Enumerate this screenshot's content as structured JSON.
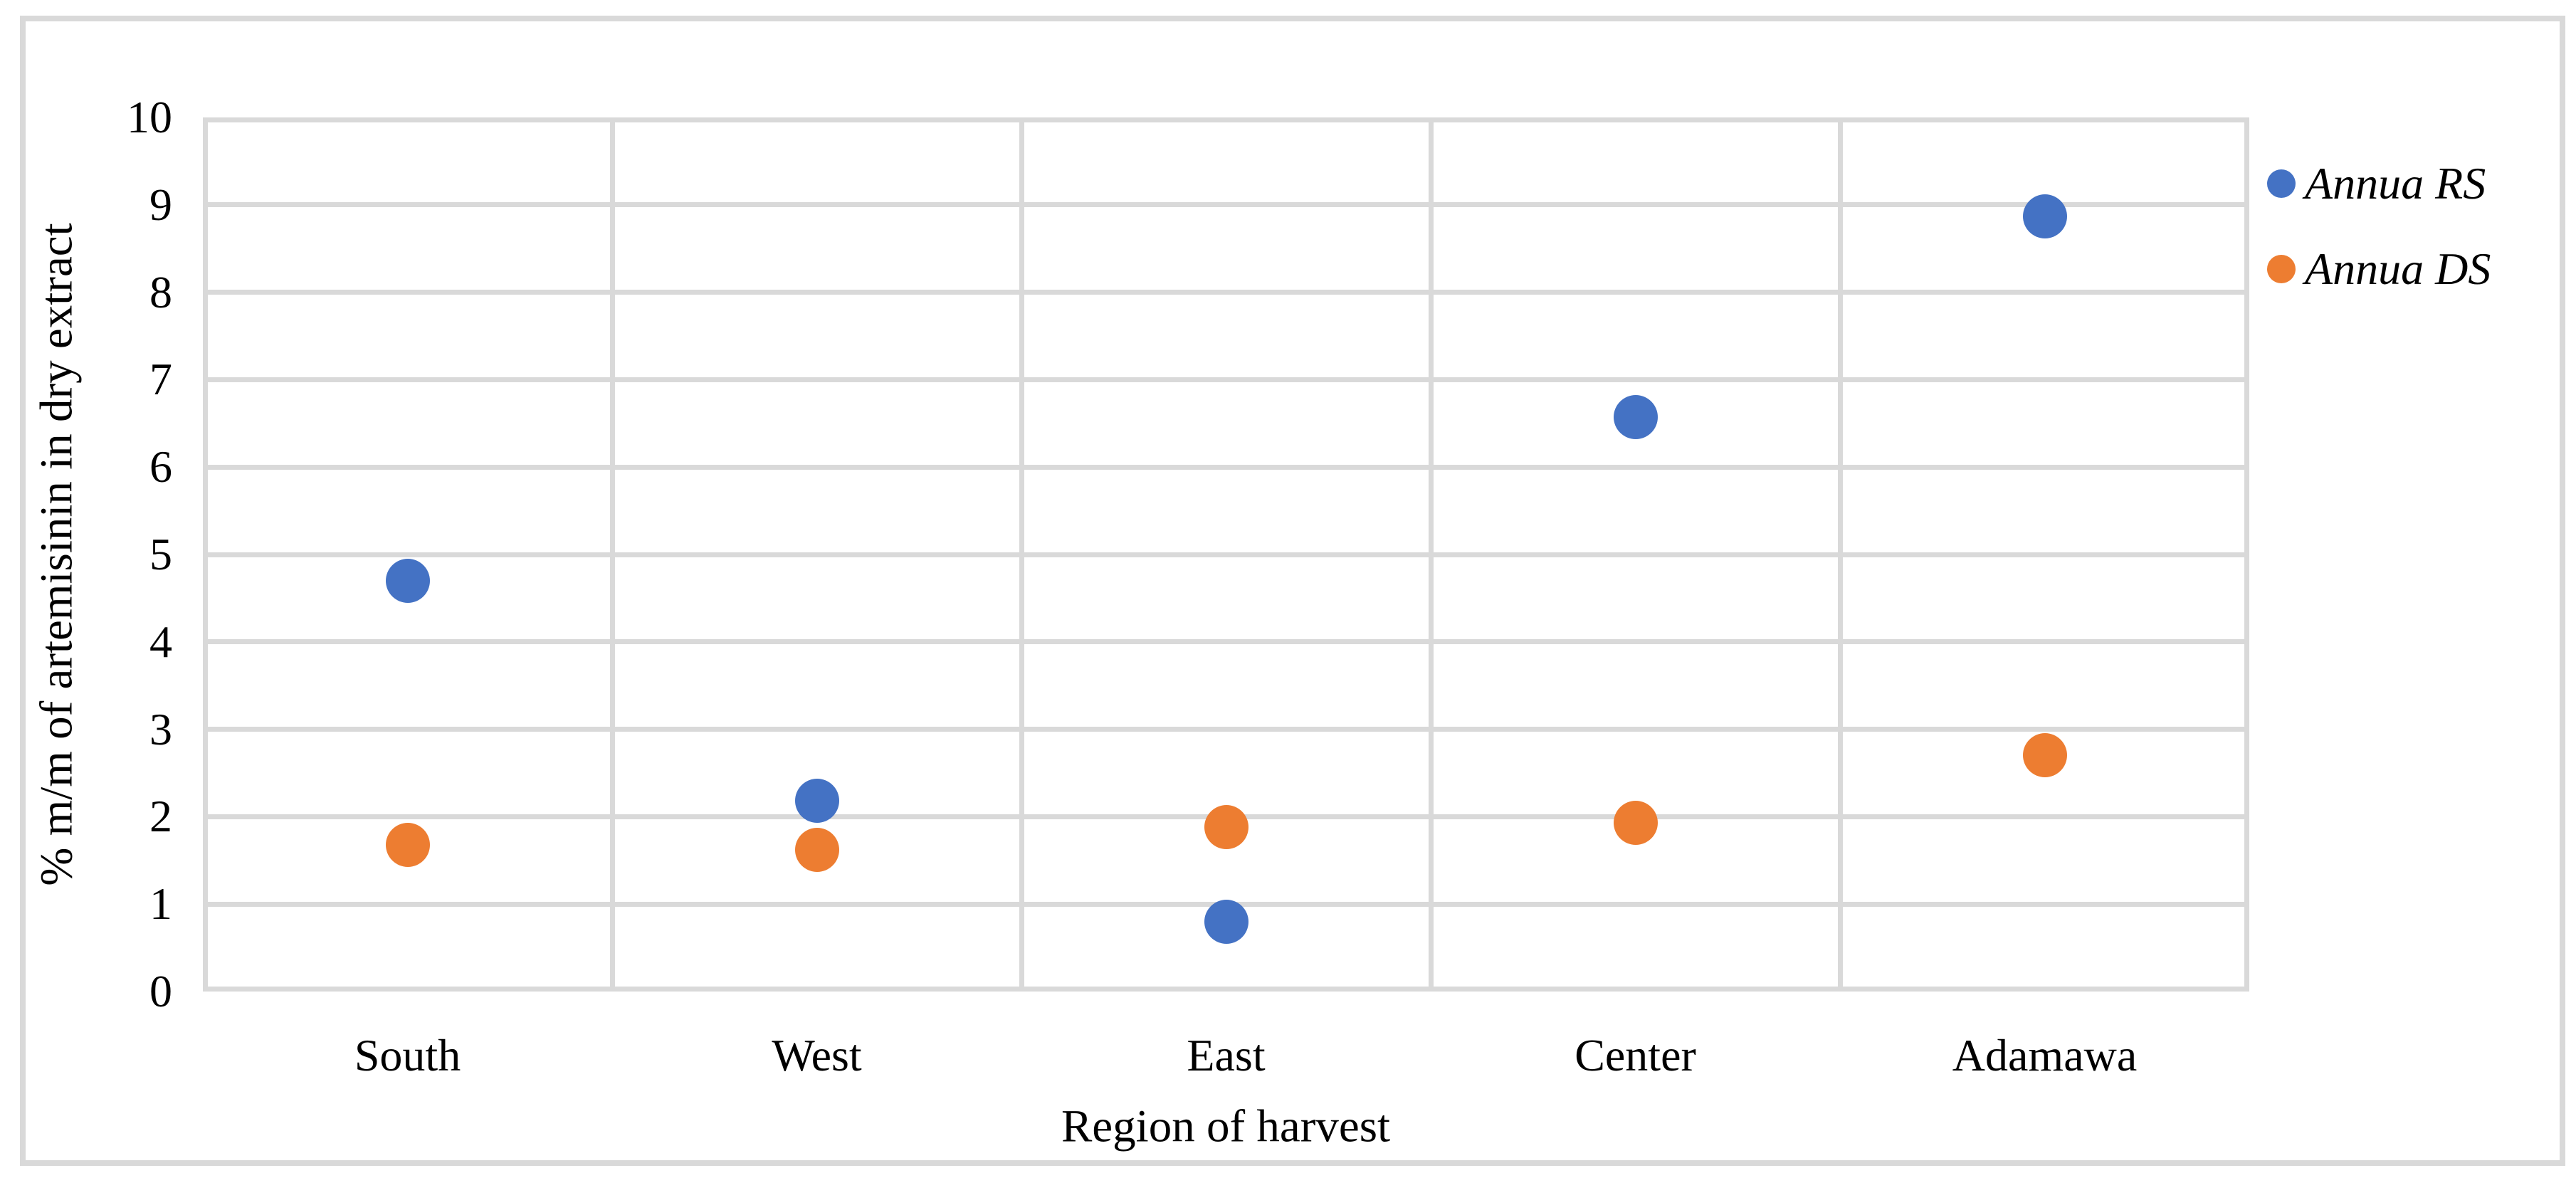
{
  "figure": {
    "background_color": "#FFFFFF",
    "frame_color": "#D9D9D9"
  },
  "chart_data": {
    "type": "scatter",
    "title": "",
    "xlabel": "Region of harvest",
    "ylabel": "% m/m of artemisinin in dry extract",
    "categories": [
      "South",
      "West",
      "East",
      "Center",
      "Adamawa"
    ],
    "series": [
      {
        "name": "Annua RS",
        "color": "#4472C4",
        "values": [
          4.7,
          2.18,
          0.8,
          6.57,
          8.87
        ]
      },
      {
        "name": "Annua DS",
        "color": "#ED7D31",
        "values": [
          1.68,
          1.62,
          1.88,
          1.93,
          2.7
        ]
      }
    ],
    "ylim": [
      0,
      10
    ],
    "ytick_step": 1,
    "y_tick_labels": [
      "0",
      "1",
      "2",
      "3",
      "4",
      "5",
      "6",
      "7",
      "8",
      "9",
      "10"
    ],
    "grid": {
      "horizontal": true,
      "vertical_category_boundaries": true,
      "color": "#D9D9D9"
    },
    "legend_position": "right",
    "marker_shape": "circle"
  }
}
